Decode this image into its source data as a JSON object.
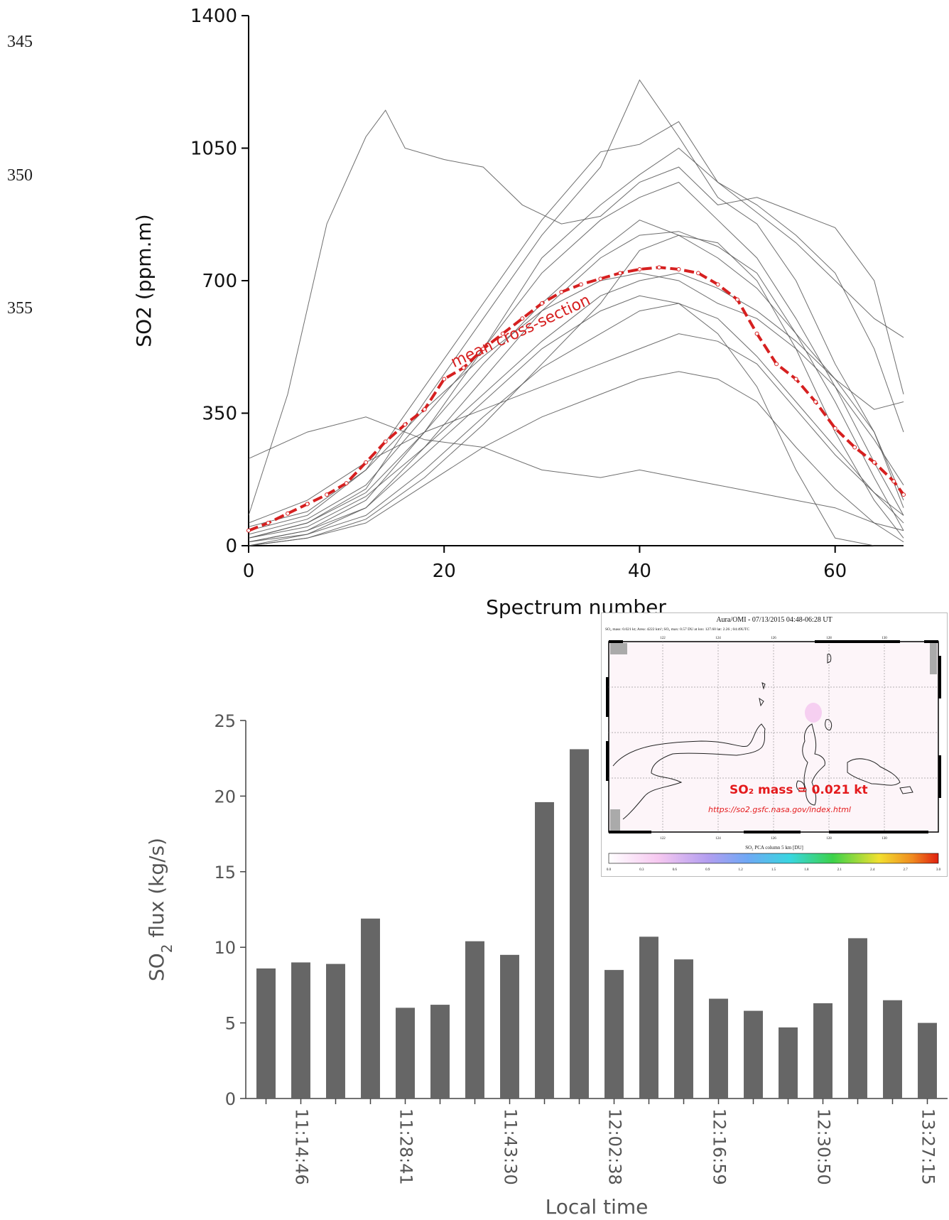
{
  "margin_numbers": [
    "345",
    "350",
    "355"
  ],
  "chart_data": [
    {
      "type": "line",
      "xlabel": "Spectrum number",
      "ylabel": "SO2 (ppm.m)",
      "xlim": [
        0,
        67
      ],
      "ylim": [
        0,
        1400
      ],
      "xticks": [
        "0",
        "20",
        "40",
        "60"
      ],
      "yticks": [
        "0",
        "350",
        "700",
        "1050",
        "1400"
      ],
      "annotation": "mean cross-section",
      "colors": {
        "individual": "#555555",
        "mean": "#d62020"
      },
      "grid": false,
      "mean_series": {
        "x": [
          0,
          2,
          4,
          6,
          8,
          10,
          12,
          14,
          16,
          18,
          20,
          22,
          24,
          26,
          28,
          30,
          32,
          34,
          36,
          38,
          40,
          42,
          44,
          46,
          48,
          50,
          52,
          54,
          56,
          58,
          60,
          62,
          64,
          66,
          67
        ],
        "y": [
          40,
          60,
          85,
          110,
          135,
          165,
          220,
          275,
          320,
          360,
          440,
          470,
          520,
          560,
          600,
          640,
          670,
          690,
          705,
          720,
          730,
          735,
          730,
          720,
          690,
          650,
          560,
          480,
          440,
          380,
          310,
          260,
          220,
          170,
          135
        ]
      },
      "series": [
        {
          "x": [
            0,
            4,
            8,
            12,
            14,
            16,
            20,
            24,
            28,
            32,
            36,
            40,
            44,
            48,
            52,
            56,
            60,
            64,
            67
          ],
          "y": [
            80,
            400,
            850,
            1080,
            1150,
            1050,
            1020,
            1000,
            900,
            850,
            870,
            960,
            1000,
            900,
            920,
            880,
            840,
            700,
            400
          ]
        },
        {
          "x": [
            0,
            6,
            12,
            18,
            24,
            30,
            36,
            40,
            44,
            48,
            52,
            56,
            60,
            64,
            67
          ],
          "y": [
            20,
            60,
            150,
            380,
            600,
            820,
            1000,
            1230,
            1080,
            920,
            850,
            700,
            480,
            300,
            100
          ]
        },
        {
          "x": [
            0,
            6,
            12,
            18,
            24,
            30,
            36,
            40,
            44,
            48,
            52,
            56,
            60,
            64,
            67
          ],
          "y": [
            40,
            80,
            200,
            420,
            640,
            860,
            1040,
            1060,
            1120,
            960,
            880,
            800,
            700,
            600,
            550
          ]
        },
        {
          "x": [
            0,
            6,
            12,
            18,
            24,
            30,
            36,
            40,
            44,
            48,
            52,
            56,
            60,
            64,
            67
          ],
          "y": [
            10,
            40,
            120,
            300,
            520,
            760,
            900,
            980,
            1050,
            960,
            900,
            820,
            720,
            520,
            300
          ]
        },
        {
          "x": [
            0,
            6,
            12,
            18,
            24,
            30,
            36,
            40,
            44,
            48,
            52,
            56,
            60,
            64,
            67
          ],
          "y": [
            30,
            70,
            160,
            340,
            520,
            720,
            860,
            920,
            960,
            860,
            760,
            600,
            420,
            220,
            80
          ]
        },
        {
          "x": [
            0,
            6,
            12,
            18,
            24,
            30,
            36,
            40,
            44,
            48,
            52,
            56,
            60,
            64,
            67
          ],
          "y": [
            0,
            30,
            100,
            260,
            440,
            620,
            760,
            820,
            830,
            790,
            720,
            560,
            380,
            180,
            40
          ]
        },
        {
          "x": [
            0,
            6,
            12,
            18,
            24,
            30,
            36,
            40,
            44,
            48,
            52,
            56,
            60,
            64,
            67
          ],
          "y": [
            50,
            90,
            200,
            360,
            500,
            620,
            700,
            720,
            700,
            640,
            600,
            520,
            420,
            280,
            160
          ]
        },
        {
          "x": [
            0,
            6,
            12,
            18,
            24,
            30,
            36,
            40,
            44,
            48,
            52,
            56,
            60,
            64,
            67
          ],
          "y": [
            20,
            50,
            130,
            260,
            400,
            540,
            660,
            700,
            720,
            680,
            620,
            540,
            440,
            300,
            120
          ]
        },
        {
          "x": [
            0,
            6,
            12,
            18,
            24,
            30,
            36,
            40,
            44,
            48,
            52,
            56,
            60,
            64,
            67
          ],
          "y": [
            10,
            30,
            80,
            200,
            340,
            470,
            560,
            620,
            640,
            600,
            500,
            380,
            260,
            140,
            60
          ]
        },
        {
          "x": [
            0,
            6,
            12,
            18,
            24,
            30,
            36,
            40,
            44,
            48,
            52,
            56,
            60,
            64,
            67
          ],
          "y": [
            60,
            120,
            220,
            300,
            360,
            420,
            480,
            520,
            560,
            540,
            480,
            360,
            240,
            140,
            80
          ]
        },
        {
          "x": [
            0,
            6,
            12,
            18,
            24,
            30,
            36,
            40,
            44,
            48,
            52,
            56,
            60,
            64,
            67
          ],
          "y": [
            0,
            20,
            60,
            160,
            260,
            340,
            400,
            440,
            460,
            440,
            380,
            260,
            150,
            60,
            10
          ]
        },
        {
          "x": [
            0,
            6,
            12,
            18,
            24,
            30,
            36,
            40,
            44,
            48,
            52,
            56,
            60,
            64,
            67
          ],
          "y": [
            230,
            300,
            340,
            280,
            260,
            200,
            180,
            200,
            180,
            160,
            140,
            120,
            100,
            60,
            40
          ]
        },
        {
          "x": [
            0,
            6,
            12,
            18,
            24,
            30,
            36,
            40,
            44,
            48,
            52,
            56,
            60,
            64,
            67
          ],
          "y": [
            10,
            40,
            100,
            240,
            380,
            520,
            620,
            660,
            640,
            560,
            420,
            200,
            20,
            0,
            0
          ]
        },
        {
          "x": [
            0,
            6,
            12,
            18,
            24,
            30,
            36,
            40,
            44,
            48,
            52,
            56,
            60,
            64,
            67
          ],
          "y": [
            0,
            20,
            70,
            180,
            320,
            480,
            640,
            780,
            820,
            800,
            700,
            520,
            300,
            120,
            20
          ]
        },
        {
          "x": [
            0,
            6,
            12,
            18,
            24,
            30,
            36,
            40,
            44,
            48,
            52,
            56,
            60,
            64,
            67
          ],
          "y": [
            20,
            60,
            140,
            300,
            480,
            640,
            780,
            860,
            820,
            760,
            680,
            560,
            440,
            360,
            380
          ]
        }
      ]
    },
    {
      "type": "bar",
      "xlabel": "Local time",
      "ylabel": "SO2 flux (kg/s)",
      "ylim": [
        0,
        25
      ],
      "yticks": [
        "0",
        "5",
        "10",
        "15",
        "20",
        "25"
      ],
      "categories": [
        "",
        "11:14:46",
        "",
        "",
        "11:28:41",
        "",
        "",
        "11:43:30",
        "",
        "",
        "12:02:38",
        "",
        "",
        "12:16:59",
        "",
        "",
        "12:30:50",
        "",
        "",
        "13:27:15"
      ],
      "values": [
        8.6,
        9.0,
        8.9,
        11.9,
        6.0,
        6.2,
        10.4,
        9.5,
        19.6,
        23.1,
        8.5,
        10.7,
        9.2,
        6.6,
        5.8,
        4.7,
        6.3,
        10.6,
        6.5,
        5.0
      ],
      "colors": {
        "bar": "#666666"
      }
    }
  ],
  "inset": {
    "title": "Aura/OMI - 07/13/2015 04:48-06:28 UT",
    "subtitle": "SO₂ mass: 0.021 kt; Area: 4222 km²; SO₂ max: 0.57 DU at lon: 127.60 lat: 2.26 ; 04:49UTC",
    "mass_label": "SO₂ mass = 0.021 kt",
    "url": "https://so2.gsfc.nasa.gov/index.html",
    "colorbar_label": "SO₂ PCA column 5 km [DU]",
    "lon_ticks": [
      "122",
      "124",
      "126",
      "128",
      "130"
    ],
    "colorbar_ticks": [
      "0.0",
      "0.3",
      "0.6",
      "0.9",
      "1.2",
      "1.5",
      "1.8",
      "2.1",
      "2.4",
      "2.7",
      "3.0"
    ]
  }
}
